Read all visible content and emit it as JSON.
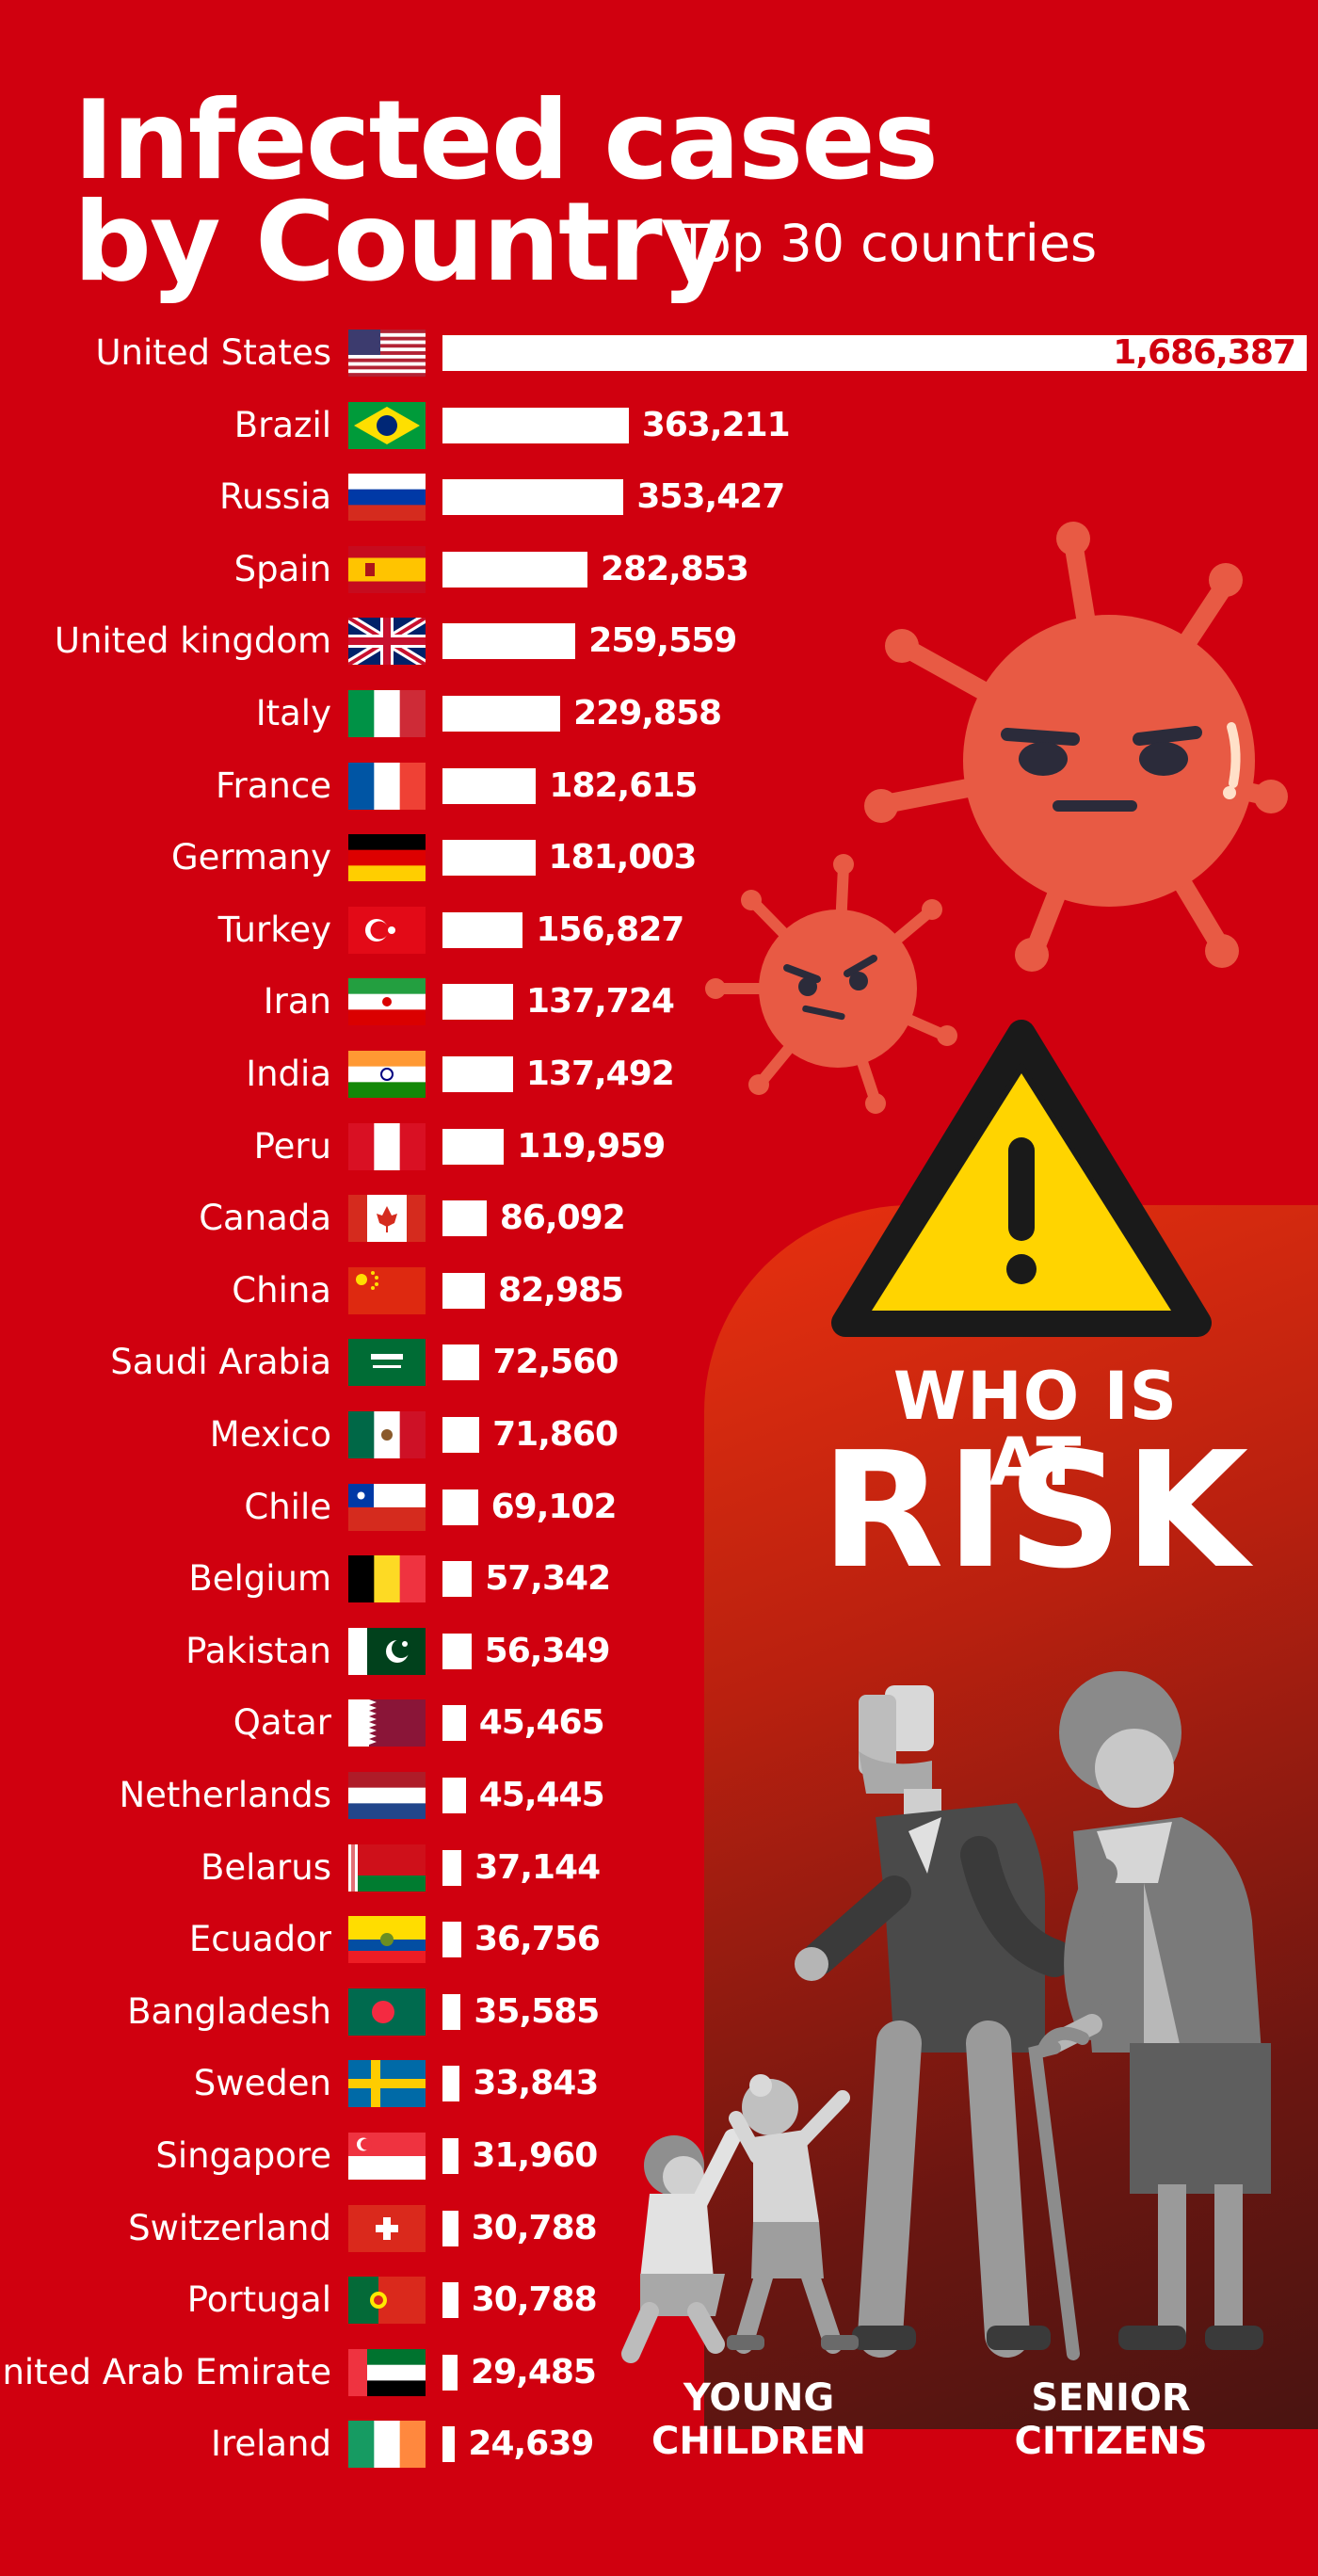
{
  "header": {
    "title_line1": "Infected cases",
    "title_line2": "by Country",
    "subtitle": "Top 30 countries"
  },
  "colors": {
    "background": "#d0000f",
    "bar": "#ffffff",
    "virus": "#e85a44",
    "warning": "#ffd400"
  },
  "chart_data": {
    "type": "bar",
    "orientation": "horizontal",
    "title": "Infected cases by Country",
    "subtitle": "Top 30 countries",
    "categories": [
      "United States",
      "Brazil",
      "Russia",
      "Spain",
      "United kingdom",
      "Italy",
      "France",
      "Germany",
      "Turkey",
      "Iran",
      "India",
      "Peru",
      "Canada",
      "China",
      "Saudi Arabia",
      "Mexico",
      "Chile",
      "Belgium",
      "Pakistan",
      "Qatar",
      "Netherlands",
      "Belarus",
      "Ecuador",
      "Bangladesh",
      "Sweden",
      "Singapore",
      "Switzerland",
      "Portugal",
      "United Arab Emirate",
      "Ireland"
    ],
    "values": [
      1686387,
      363211,
      353427,
      282853,
      259559,
      229858,
      182615,
      181003,
      156827,
      137724,
      137492,
      119959,
      86092,
      82985,
      72560,
      71860,
      69102,
      57342,
      56349,
      45465,
      45445,
      37144,
      36756,
      35585,
      33843,
      31960,
      30788,
      30788,
      29485,
      24639
    ],
    "labels": [
      "1,686,387",
      "363,211",
      "353,427",
      "282,853",
      "259,559",
      "229,858",
      "182,615",
      "181,003",
      "156,827",
      "137,724",
      "137,492",
      "119,959",
      "86,092",
      "82,985",
      "72,560",
      "71,860",
      "69,102",
      "57,342",
      "56,349",
      "45,465",
      "45,445",
      "37,144",
      "36,756",
      "35,585",
      "33,843",
      "31,960",
      "30,788",
      "30,788",
      "29,485",
      "24,639"
    ],
    "flags": [
      "us",
      "br",
      "ru",
      "es",
      "gb",
      "it",
      "fr",
      "de",
      "tr",
      "ir",
      "in",
      "pe",
      "ca",
      "cn",
      "sa",
      "mx",
      "cl",
      "be",
      "pk",
      "qa",
      "nl",
      "by",
      "ec",
      "bd",
      "se",
      "sg",
      "ch",
      "pt",
      "ae",
      "ie"
    ]
  },
  "risk_panel": {
    "line1": "WHO IS AT",
    "line2": "RISK",
    "group1": "YOUNG\nCHILDREN",
    "group2": "SENIOR\nCITIZENS",
    "icons": [
      "virus-icon",
      "warning-icon",
      "elderly-couple-icon",
      "children-icon"
    ]
  }
}
